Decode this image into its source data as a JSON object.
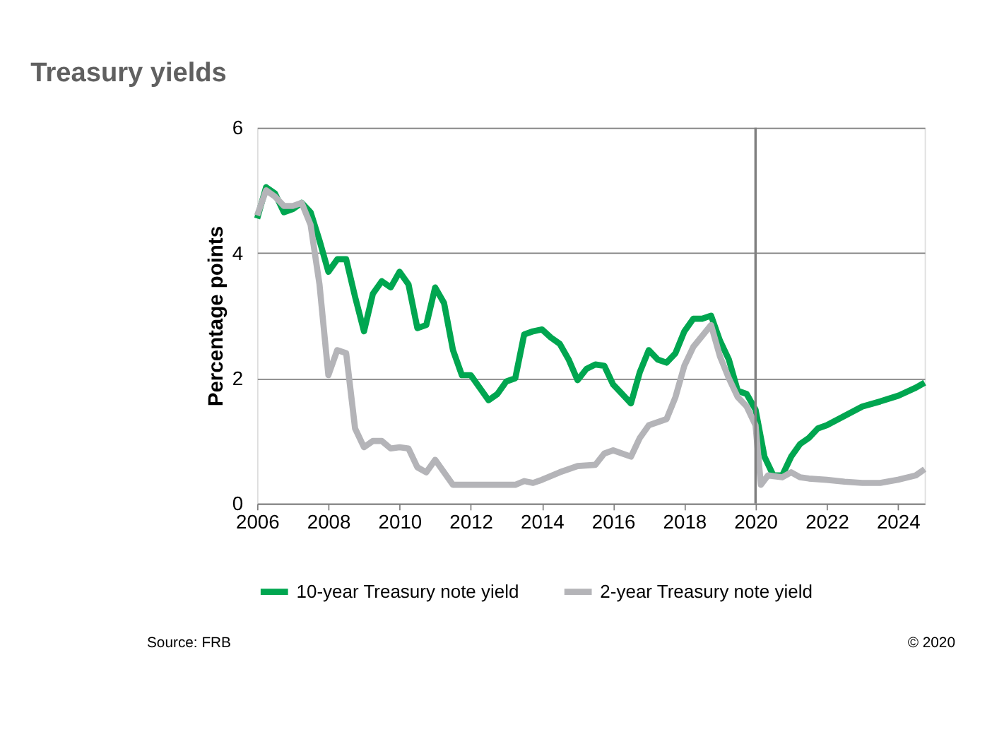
{
  "chart_data": {
    "type": "line",
    "title": "Treasury yields",
    "ylabel": "Percentage points",
    "xlim": [
      2006,
      2024.75
    ],
    "xticks": [
      2006,
      2008,
      2010,
      2012,
      2014,
      2016,
      2018,
      2020,
      2022,
      2024
    ],
    "ylim": [
      0,
      6
    ],
    "yticks": [
      0,
      2,
      4,
      6
    ],
    "grid": "y",
    "legend": "bottom",
    "marker": "none",
    "line_style": "solid",
    "ref_lines": [
      {
        "axis": "x",
        "value": 2020,
        "color": "#808080"
      }
    ],
    "annotations": [
      "Source: FRB",
      "© 2020"
    ],
    "series": [
      {
        "name": "10-year Treasury note yield",
        "color": "#00a650",
        "x": [
          2006,
          2006.25,
          2006.5,
          2006.75,
          2007,
          2007.25,
          2007.5,
          2007.75,
          2008,
          2008.25,
          2008.5,
          2008.75,
          2009,
          2009.25,
          2009.5,
          2009.75,
          2010,
          2010.25,
          2010.5,
          2010.75,
          2011,
          2011.25,
          2011.5,
          2011.75,
          2012,
          2012.25,
          2012.5,
          2012.75,
          2013,
          2013.25,
          2013.5,
          2013.75,
          2014,
          2014.25,
          2014.5,
          2014.75,
          2015,
          2015.25,
          2015.5,
          2015.75,
          2016,
          2016.25,
          2016.5,
          2016.75,
          2017,
          2017.25,
          2017.5,
          2017.75,
          2018,
          2018.25,
          2018.5,
          2018.75,
          2019,
          2019.25,
          2019.5,
          2019.75,
          2020,
          2020.25,
          2020.5,
          2020.75,
          2021,
          2021.25,
          2021.5,
          2021.75,
          2022,
          2022.5,
          2023,
          2023.5,
          2024,
          2024.5,
          2024.75
        ],
        "values": [
          4.55,
          5.05,
          4.95,
          4.65,
          4.7,
          4.8,
          4.65,
          4.2,
          3.7,
          3.9,
          3.9,
          3.3,
          2.75,
          3.35,
          3.55,
          3.45,
          3.7,
          3.5,
          2.8,
          2.85,
          3.45,
          3.2,
          2.45,
          2.05,
          2.05,
          1.85,
          1.65,
          1.75,
          1.95,
          2.0,
          2.7,
          2.75,
          2.78,
          2.65,
          2.55,
          2.3,
          1.97,
          2.15,
          2.22,
          2.2,
          1.9,
          1.75,
          1.6,
          2.1,
          2.45,
          2.3,
          2.25,
          2.4,
          2.75,
          2.95,
          2.95,
          3.0,
          2.6,
          2.3,
          1.8,
          1.75,
          1.5,
          0.75,
          0.45,
          0.45,
          0.75,
          0.95,
          1.05,
          1.2,
          1.25,
          1.4,
          1.55,
          1.63,
          1.72,
          1.85,
          1.93
        ]
      },
      {
        "name": "2-year Treasury note yield",
        "color": "#b4b4b8",
        "x": [
          2006,
          2006.25,
          2006.5,
          2006.75,
          2007,
          2007.25,
          2007.5,
          2007.75,
          2008,
          2008.25,
          2008.5,
          2008.75,
          2009,
          2009.25,
          2009.5,
          2009.75,
          2010,
          2010.25,
          2010.5,
          2010.75,
          2011,
          2011.25,
          2011.5,
          2012,
          2012.5,
          2013,
          2013.25,
          2013.5,
          2013.75,
          2014,
          2014.5,
          2015,
          2015.5,
          2015.75,
          2016,
          2016.5,
          2016.75,
          2017,
          2017.5,
          2017.75,
          2018,
          2018.25,
          2018.75,
          2019,
          2019.25,
          2019.5,
          2019.75,
          2020,
          2020.15,
          2020.35,
          2020.75,
          2021,
          2021.25,
          2021.5,
          2022,
          2022.5,
          2023,
          2023.5,
          2024,
          2024.5,
          2024.75
        ],
        "values": [
          4.6,
          5.0,
          4.9,
          4.75,
          4.75,
          4.8,
          4.45,
          3.5,
          2.05,
          2.45,
          2.4,
          1.2,
          0.9,
          1.0,
          1.0,
          0.88,
          0.9,
          0.88,
          0.58,
          0.5,
          0.7,
          0.5,
          0.3,
          0.3,
          0.3,
          0.3,
          0.3,
          0.36,
          0.33,
          0.38,
          0.5,
          0.6,
          0.62,
          0.8,
          0.85,
          0.75,
          1.05,
          1.25,
          1.35,
          1.7,
          2.2,
          2.5,
          2.85,
          2.35,
          2.0,
          1.7,
          1.55,
          1.25,
          0.3,
          0.45,
          0.42,
          0.5,
          0.42,
          0.4,
          0.38,
          0.35,
          0.33,
          0.33,
          0.38,
          0.45,
          0.55
        ]
      }
    ]
  }
}
